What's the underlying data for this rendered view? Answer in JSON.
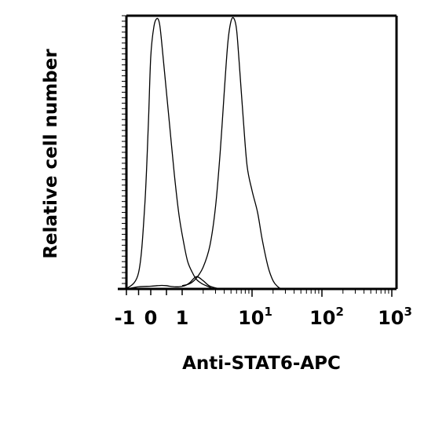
{
  "chart_data": {
    "type": "line",
    "xlabel": "Anti-STAT6-APC",
    "ylabel": "Relative cell number",
    "x_scale": "biexponential",
    "xlim": [
      -1,
      1000
    ],
    "ylim": [
      0,
      100
    ],
    "grid": false,
    "legend": "none",
    "x_ticks": [
      {
        "value": -1,
        "base": "-1",
        "exp": ""
      },
      {
        "value": 0,
        "base": "0",
        "exp": ""
      },
      {
        "value": 1,
        "base": "1",
        "exp": ""
      },
      {
        "value": 10,
        "base": "10",
        "exp": "1"
      },
      {
        "value": 100,
        "base": "10",
        "exp": "2"
      },
      {
        "value": 1000,
        "base": "10",
        "exp": "3"
      }
    ],
    "series": [
      {
        "x": [
          -1,
          -0.5,
          0,
          0.2,
          0.35,
          0.5,
          0.6,
          0.75,
          0.9,
          1.1,
          1.3,
          1.6,
          2.0,
          2.5,
          3.5
        ],
        "y": [
          0,
          0.8,
          1.0,
          1.2,
          1.3,
          1.2,
          1.0,
          0.8,
          0.8,
          1.2,
          2.4,
          4.5,
          3.0,
          1.0,
          0
        ]
      },
      {
        "x": [
          -1,
          -0.5,
          -0.25,
          -0.1,
          0,
          0.1,
          0.2,
          0.28,
          0.35,
          0.45,
          0.6,
          0.75,
          0.9,
          1.05,
          1.2,
          1.4,
          1.6,
          1.9,
          2.3,
          2.8
        ],
        "y": [
          0,
          6,
          30,
          60,
          85,
          96,
          99,
          97,
          90,
          78,
          60,
          42,
          27,
          17,
          10,
          6,
          3.5,
          2,
          1,
          0
        ]
      },
      {
        "x": [
          1.0,
          1.3,
          1.6,
          2.0,
          2.5,
          3.0,
          3.5,
          4.0,
          4.5,
          5.0,
          5.5,
          6.0,
          6.5,
          7.5,
          8.5,
          10,
          12,
          14,
          17,
          20,
          23,
          26
        ],
        "y": [
          1.2,
          2.0,
          4.0,
          8,
          16,
          30,
          50,
          72,
          90,
          98,
          99,
          95,
          84,
          62,
          45,
          36,
          28,
          18,
          8,
          3,
          1,
          0
        ]
      }
    ]
  }
}
